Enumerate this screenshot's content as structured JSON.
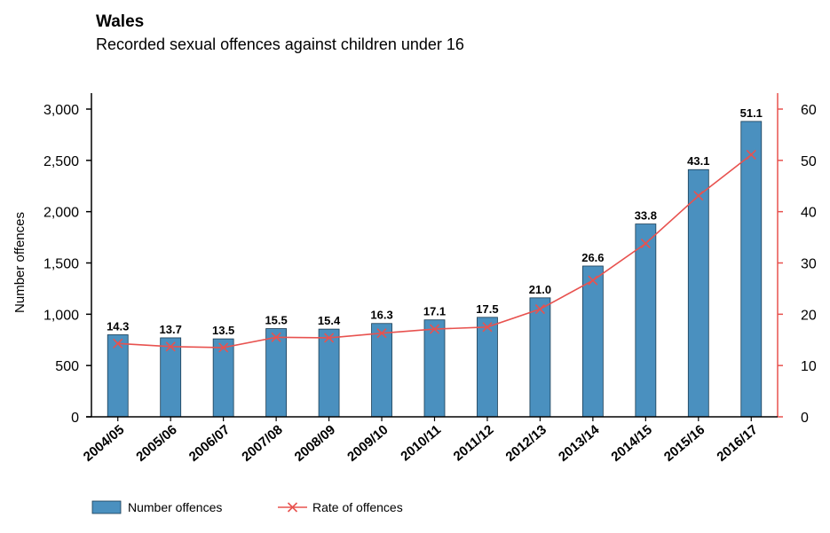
{
  "chart_data": {
    "type": "bar+line",
    "title": "Wales",
    "subtitle": "Recorded sexual offences against children under 16",
    "categories": [
      "2004/05",
      "2005/06",
      "2006/07",
      "2007/08",
      "2008/09",
      "2009/10",
      "2010/11",
      "2011/12",
      "2012/13",
      "2013/14",
      "2014/15",
      "2015/16",
      "2016/17"
    ],
    "series": [
      {
        "name": "Number offences",
        "type": "bar",
        "axis": "left",
        "color": "#4a90bf",
        "values": [
          800,
          770,
          760,
          860,
          855,
          910,
          945,
          970,
          1160,
          1470,
          1880,
          2410,
          2880
        ]
      },
      {
        "name": "Rate of offences",
        "type": "line",
        "axis": "right",
        "color": "#e8524f",
        "values": [
          14.3,
          13.7,
          13.5,
          15.5,
          15.4,
          16.3,
          17.1,
          17.5,
          21.0,
          26.6,
          33.8,
          43.1,
          51.1
        ],
        "labels": [
          "14.3",
          "13.7",
          "13.5",
          "15.5",
          "15.4",
          "16.3",
          "17.1",
          "17.5",
          "21.0",
          "26.6",
          "33.8",
          "43.1",
          "51.1"
        ]
      }
    ],
    "ylabel": "Number offences",
    "ylim": [
      0,
      3000
    ],
    "yticks": [
      0,
      500,
      1000,
      1500,
      2000,
      2500,
      3000
    ],
    "ytick_labels": [
      "0",
      "500",
      "1,000",
      "1,500",
      "2,000",
      "2,500",
      "3,000"
    ],
    "y2lim": [
      0,
      60
    ],
    "y2ticks": [
      0,
      10,
      20,
      30,
      40,
      50,
      60
    ],
    "y2tick_labels": [
      "0",
      "10",
      "20",
      "30",
      "40",
      "50",
      "60"
    ],
    "legend_position": "bottom-left",
    "grid": false
  }
}
